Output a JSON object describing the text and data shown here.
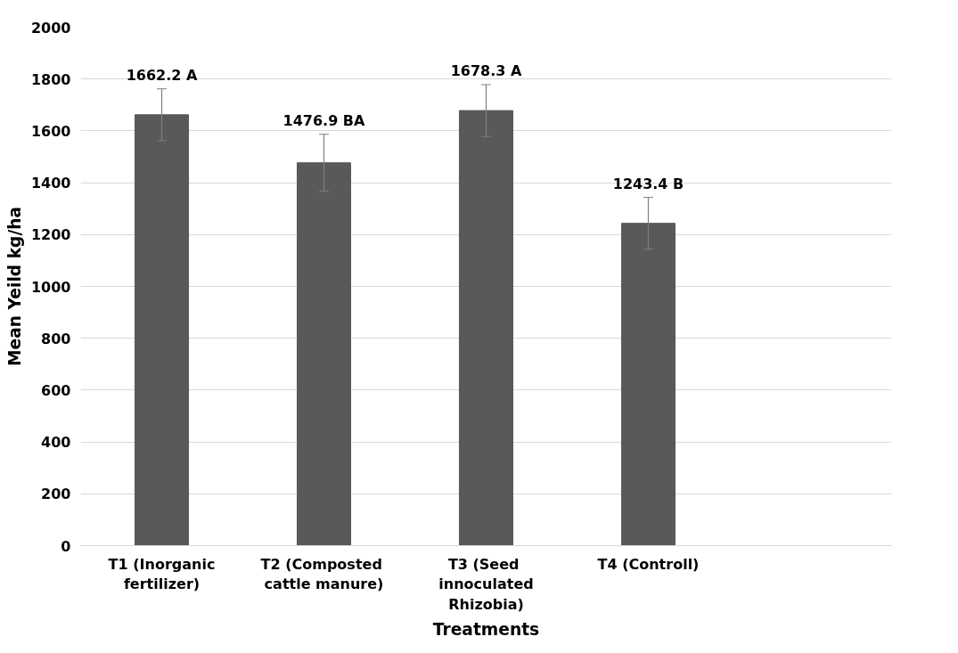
{
  "chart_data": {
    "type": "bar",
    "xlabel": "Treatments",
    "ylabel": "Mean Yeild kg/ha",
    "categories": [
      "T1 (Inorganic fertilizer)",
      "T2  (Composted cattle manure)",
      "T3  (Seed innoculated Rhizobia)",
      "T4 (Controll)",
      null
    ],
    "values": [
      1662.2,
      1476.9,
      1678.3,
      1243.4,
      null
    ],
    "errors": [
      100,
      110,
      100,
      100,
      null
    ],
    "value_labels": [
      "1662.2 A",
      "1476.9 BA",
      "1678.3 A",
      "1243.4 B",
      null
    ],
    "color": "#595959",
    "ylim": [
      0,
      2000
    ],
    "yticks": [
      0,
      200,
      400,
      600,
      800,
      1000,
      1200,
      1400,
      1600,
      1800,
      2000
    ],
    "grid": "y"
  }
}
